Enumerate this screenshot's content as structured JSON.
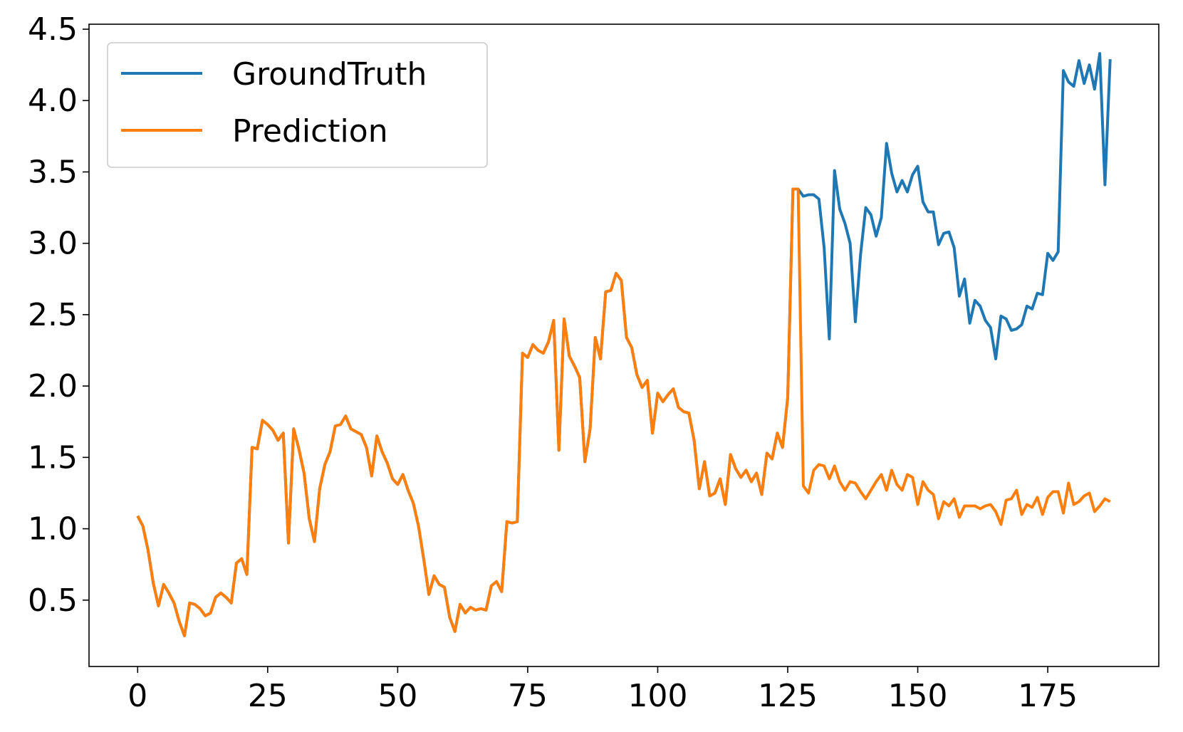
{
  "chart_data": {
    "type": "line",
    "x": [
      0,
      1,
      2,
      3,
      4,
      5,
      6,
      7,
      8,
      9,
      10,
      11,
      12,
      13,
      14,
      15,
      16,
      17,
      18,
      19,
      20,
      21,
      22,
      23,
      24,
      25,
      26,
      27,
      28,
      29,
      30,
      31,
      32,
      33,
      34,
      35,
      36,
      37,
      38,
      39,
      40,
      41,
      42,
      43,
      44,
      45,
      46,
      47,
      48,
      49,
      50,
      51,
      52,
      53,
      54,
      55,
      56,
      57,
      58,
      59,
      60,
      61,
      62,
      63,
      64,
      65,
      66,
      67,
      68,
      69,
      70,
      71,
      72,
      73,
      74,
      75,
      76,
      77,
      78,
      79,
      80,
      81,
      82,
      83,
      84,
      85,
      86,
      87,
      88,
      89,
      90,
      91,
      92,
      93,
      94,
      95,
      96,
      97,
      98,
      99,
      100,
      101,
      102,
      103,
      104,
      105,
      106,
      107,
      108,
      109,
      110,
      111,
      112,
      113,
      114,
      115,
      116,
      117,
      118,
      119,
      120,
      121,
      122,
      123,
      124,
      125,
      126,
      127,
      128,
      129,
      130,
      131,
      132,
      133,
      134,
      135,
      136,
      137,
      138,
      139,
      140,
      141,
      142,
      143,
      144,
      145,
      146,
      147,
      148,
      149,
      150,
      151,
      152,
      153,
      154,
      155,
      156,
      157,
      158,
      159,
      160,
      161,
      162,
      163,
      164,
      165,
      166,
      167,
      168,
      169,
      170,
      171,
      172,
      173,
      174,
      175,
      176,
      177,
      178,
      179,
      180,
      181,
      182,
      183,
      184,
      185,
      186,
      187
    ],
    "series": [
      {
        "name": "GroundTruth",
        "color": "#1f77b4",
        "values": [
          1.09,
          1.02,
          0.85,
          0.62,
          0.46,
          0.61,
          0.55,
          0.48,
          0.35,
          0.25,
          0.48,
          0.47,
          0.44,
          0.39,
          0.41,
          0.52,
          0.55,
          0.52,
          0.48,
          0.76,
          0.79,
          0.68,
          1.57,
          1.56,
          1.76,
          1.73,
          1.69,
          1.62,
          1.67,
          0.9,
          1.7,
          1.56,
          1.39,
          1.07,
          0.91,
          1.28,
          1.45,
          1.54,
          1.72,
          1.73,
          1.79,
          1.7,
          1.68,
          1.66,
          1.57,
          1.37,
          1.65,
          1.54,
          1.46,
          1.35,
          1.31,
          1.38,
          1.27,
          1.18,
          1.02,
          0.79,
          0.54,
          0.67,
          0.61,
          0.59,
          0.38,
          0.28,
          0.47,
          0.41,
          0.45,
          0.43,
          0.44,
          0.43,
          0.6,
          0.63,
          0.56,
          1.05,
          1.04,
          1.05,
          2.23,
          2.2,
          2.29,
          2.25,
          2.23,
          2.31,
          2.46,
          1.55,
          2.47,
          2.21,
          2.14,
          2.06,
          1.47,
          1.7,
          2.34,
          2.19,
          2.66,
          2.67,
          2.79,
          2.74,
          2.34,
          2.27,
          2.08,
          1.99,
          2.04,
          1.67,
          1.95,
          1.89,
          1.94,
          1.98,
          1.85,
          1.82,
          1.81,
          1.62,
          1.28,
          1.47,
          1.23,
          1.25,
          1.35,
          1.17,
          1.52,
          1.42,
          1.36,
          1.41,
          1.33,
          1.39,
          1.24,
          1.53,
          1.49,
          1.67,
          1.57,
          1.92,
          3.38,
          3.38,
          3.33,
          3.34,
          3.34,
          3.31,
          2.97,
          2.33,
          3.51,
          3.24,
          3.14,
          3.0,
          2.45,
          2.92,
          3.25,
          3.2,
          3.05,
          3.18,
          3.7,
          3.49,
          3.36,
          3.44,
          3.36,
          3.48,
          3.54,
          3.29,
          3.22,
          3.22,
          2.99,
          3.07,
          3.08,
          2.97,
          2.63,
          2.75,
          2.44,
          2.6,
          2.56,
          2.46,
          2.41,
          2.19,
          2.49,
          2.47,
          2.39,
          2.4,
          2.43,
          2.56,
          2.54,
          2.65,
          2.64,
          2.93,
          2.88,
          2.94,
          4.21,
          4.13,
          4.1,
          4.28,
          4.12,
          4.25,
          4.08,
          4.33,
          3.41,
          4.29
        ]
      },
      {
        "name": "Prediction",
        "color": "#ff7f0e",
        "values": [
          1.09,
          1.02,
          0.85,
          0.62,
          0.46,
          0.61,
          0.55,
          0.48,
          0.35,
          0.25,
          0.48,
          0.47,
          0.44,
          0.39,
          0.41,
          0.52,
          0.55,
          0.52,
          0.48,
          0.76,
          0.79,
          0.68,
          1.57,
          1.56,
          1.76,
          1.73,
          1.69,
          1.62,
          1.67,
          0.9,
          1.7,
          1.56,
          1.39,
          1.07,
          0.91,
          1.28,
          1.45,
          1.54,
          1.72,
          1.73,
          1.79,
          1.7,
          1.68,
          1.66,
          1.57,
          1.37,
          1.65,
          1.54,
          1.46,
          1.35,
          1.31,
          1.38,
          1.27,
          1.18,
          1.02,
          0.79,
          0.54,
          0.67,
          0.61,
          0.59,
          0.38,
          0.28,
          0.47,
          0.41,
          0.45,
          0.43,
          0.44,
          0.43,
          0.6,
          0.63,
          0.56,
          1.05,
          1.04,
          1.05,
          2.23,
          2.2,
          2.29,
          2.25,
          2.23,
          2.31,
          2.46,
          1.55,
          2.47,
          2.21,
          2.14,
          2.06,
          1.47,
          1.7,
          2.34,
          2.19,
          2.66,
          2.67,
          2.79,
          2.74,
          2.34,
          2.27,
          2.08,
          1.99,
          2.04,
          1.67,
          1.95,
          1.89,
          1.94,
          1.98,
          1.85,
          1.82,
          1.81,
          1.62,
          1.28,
          1.47,
          1.23,
          1.25,
          1.35,
          1.17,
          1.52,
          1.42,
          1.36,
          1.41,
          1.33,
          1.39,
          1.24,
          1.53,
          1.49,
          1.67,
          1.57,
          1.92,
          3.38,
          3.38,
          1.3,
          1.25,
          1.41,
          1.45,
          1.44,
          1.35,
          1.44,
          1.33,
          1.27,
          1.33,
          1.32,
          1.26,
          1.21,
          1.27,
          1.33,
          1.38,
          1.27,
          1.41,
          1.31,
          1.27,
          1.38,
          1.36,
          1.17,
          1.33,
          1.27,
          1.24,
          1.07,
          1.19,
          1.16,
          1.21,
          1.08,
          1.16,
          1.16,
          1.16,
          1.14,
          1.16,
          1.17,
          1.12,
          1.03,
          1.2,
          1.21,
          1.27,
          1.1,
          1.17,
          1.15,
          1.22,
          1.1,
          1.22,
          1.26,
          1.26,
          1.11,
          1.32,
          1.17,
          1.19,
          1.23,
          1.25,
          1.12,
          1.16,
          1.21,
          1.19
        ]
      }
    ],
    "xlim": [
      -9.35,
      196.35
    ],
    "ylim": [
      0.035,
      4.535
    ],
    "xticks": [
      0,
      25,
      50,
      75,
      100,
      125,
      150,
      175
    ],
    "yticks": [
      0.5,
      {
        "value": 1,
        "label": "1.0"
      },
      1.5,
      {
        "value": 2,
        "label": "2.0"
      },
      2.5,
      {
        "value": 3,
        "label": "3.0"
      },
      3.5,
      {
        "value": 4,
        "label": "4.0"
      },
      4.5
    ],
    "legend": "upper left"
  }
}
